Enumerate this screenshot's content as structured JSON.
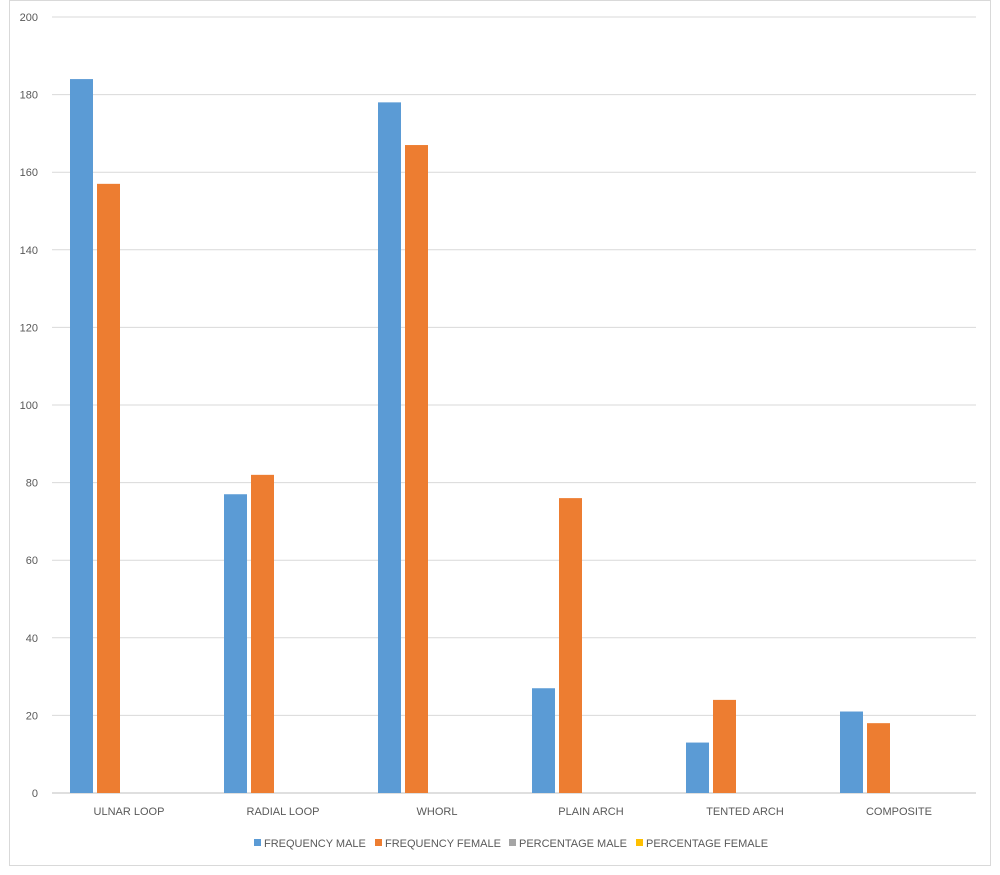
{
  "chart_data": {
    "type": "bar",
    "title": "",
    "xlabel": "",
    "ylabel": "",
    "ylim": [
      0,
      200
    ],
    "yticks": [
      0,
      20,
      40,
      60,
      80,
      100,
      120,
      140,
      160,
      180,
      200
    ],
    "grid": true,
    "legend_position": "bottom",
    "categories": [
      "ULNAR LOOP",
      "RADIAL LOOP",
      "WHORL",
      "PLAIN ARCH",
      "TENTED ARCH",
      "COMPOSITE"
    ],
    "series": [
      {
        "name": "FREQUENCY MALE",
        "color": "#5b9bd5",
        "values": [
          184,
          77,
          178,
          27,
          13,
          21
        ]
      },
      {
        "name": "FREQUENCY FEMALE",
        "color": "#ed7d31",
        "values": [
          157,
          82,
          167,
          76,
          24,
          18
        ]
      },
      {
        "name": "PERCENTAGE MALE",
        "color": "#a5a5a5",
        "values": [
          0,
          0,
          0,
          0,
          0,
          0
        ]
      },
      {
        "name": "PERCENTAGE FEMALE",
        "color": "#ffc000",
        "values": [
          0,
          0,
          0,
          0,
          0,
          0
        ]
      }
    ]
  }
}
